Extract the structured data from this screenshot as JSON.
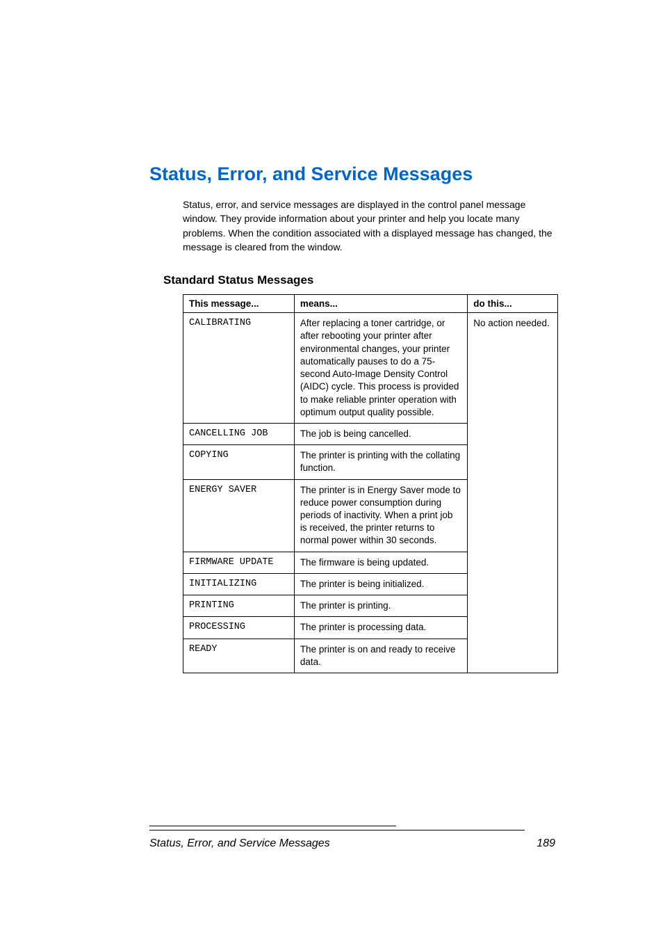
{
  "heading": "Status, Error, and Service Messages",
  "intro": "Status, error, and service messages are displayed in the control panel message window. They provide information about your printer and help you locate many problems. When the condition associated with a displayed message has changed, the message is cleared from the window.",
  "subheading": "Standard Status Messages",
  "table": {
    "headers": [
      "This message...",
      "means...",
      "do this..."
    ],
    "action": "No action needed.",
    "rows": [
      {
        "msg": "CALIBRATING",
        "means": "After replacing a toner cartridge, or after rebooting your printer after environmental changes, your printer automatically pauses to do a 75-second Auto-Image Density Control (AIDC) cycle. This process is provided to make reliable printer operation with optimum output quality possible."
      },
      {
        "msg": "CANCELLING JOB",
        "means": "The job is being cancelled."
      },
      {
        "msg": "COPYING",
        "means": "The printer is printing with the collating function."
      },
      {
        "msg": "ENERGY SAVER",
        "means": "The printer is in Energy Saver mode to reduce power consumption during periods of inactivity. When a print job is received, the printer returns to normal power within 30 seconds."
      },
      {
        "msg": "FIRMWARE UPDATE",
        "means": "The firmware is being updated."
      },
      {
        "msg": "INITIALIZING",
        "means": "The printer is being initialized."
      },
      {
        "msg": "PRINTING",
        "means": "The printer is printing."
      },
      {
        "msg": "PROCESSING",
        "means": "The printer is processing data."
      },
      {
        "msg": "READY",
        "means": "The printer is on and ready to receive data."
      }
    ]
  },
  "footer": {
    "title": "Status, Error, and Service Messages",
    "page": "189"
  }
}
